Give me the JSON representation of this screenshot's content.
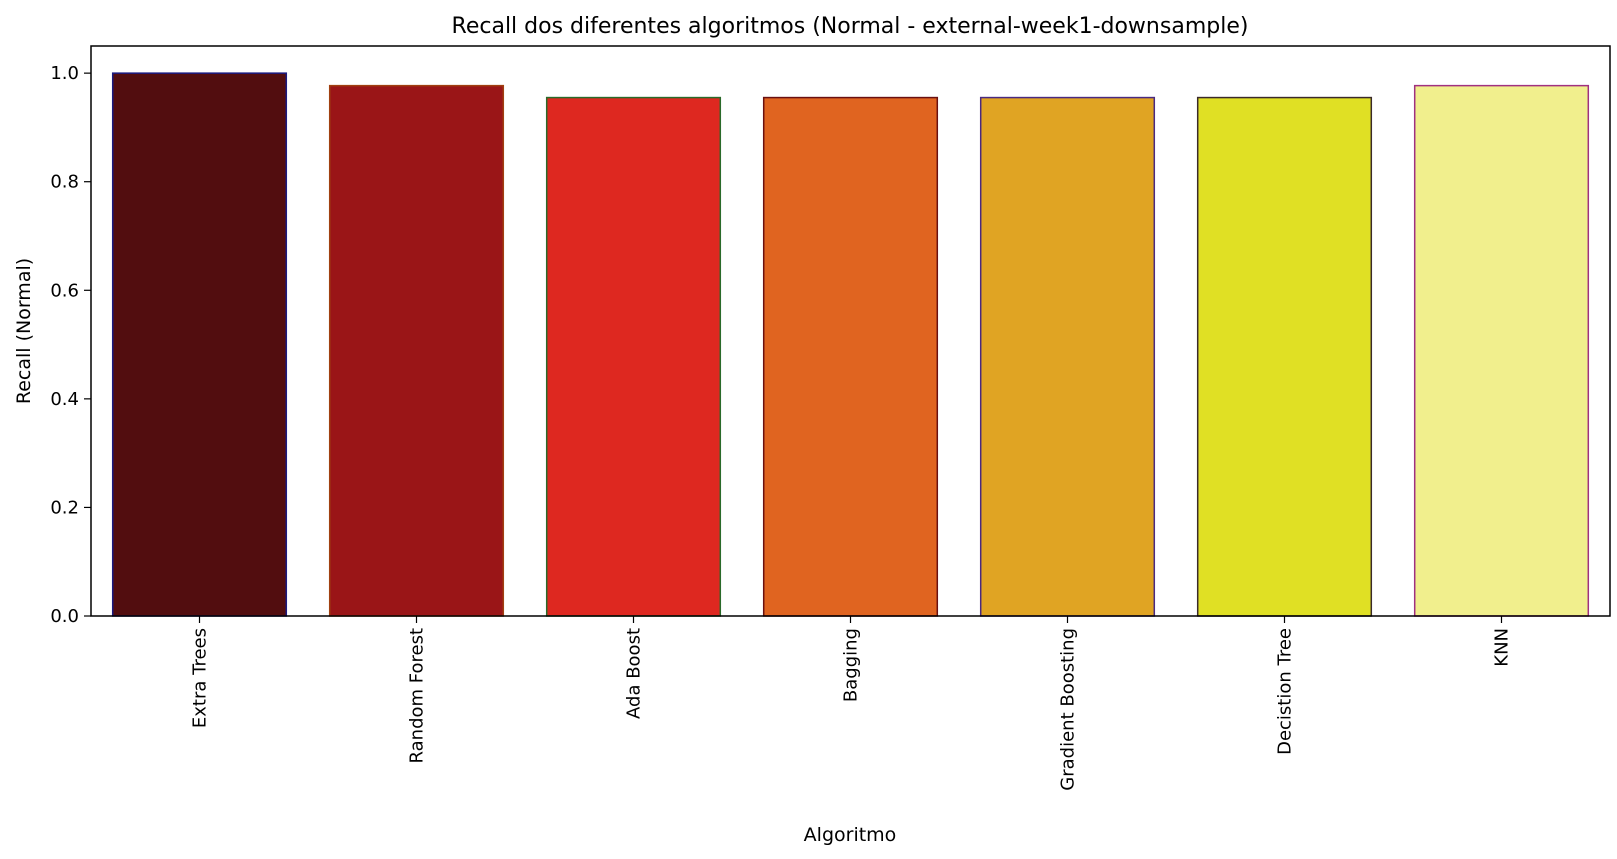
{
  "chart_data": {
    "type": "bar",
    "title": "Recall dos diferentes algoritmos (Normal - external-week1-downsample)",
    "xlabel": "Algoritmo",
    "ylabel": "Recall (Normal)",
    "ylim": [
      0,
      1.05
    ],
    "yticks": [
      0.0,
      0.2,
      0.4,
      0.6,
      0.8,
      1.0
    ],
    "ytick_labels": [
      "0.0",
      "0.2",
      "0.4",
      "0.6",
      "0.8",
      "1.0"
    ],
    "grid": false,
    "legend": "none",
    "categories": [
      "Extra Trees",
      "Random Forest",
      "Ada Boost",
      "Bagging",
      "Gradient Boosting",
      "Decistion Tree",
      "KNN"
    ],
    "values": [
      1.0,
      0.977,
      0.955,
      0.955,
      0.955,
      0.955,
      0.977
    ],
    "bar_colors": [
      "#520d0f",
      "#9a1517",
      "#de2820",
      "#e06420",
      "#e0a423",
      "#e0e024",
      "#f1ef8d"
    ],
    "edge_colors": [
      "#1a1a80",
      "#a04010",
      "#2a6a2a",
      "#6a1010",
      "#4a2a80",
      "#3a2a2a",
      "#a03080"
    ]
  }
}
